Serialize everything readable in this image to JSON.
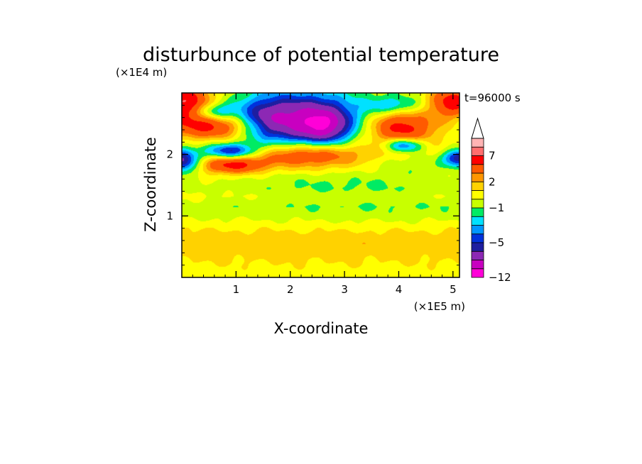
{
  "chart_data": {
    "type": "heatmap",
    "title": "disturbunce of potential temperature",
    "time_label": "t=96000 s",
    "xlabel": "X-coordinate",
    "ylabel": "Z-coordinate",
    "x_unit": "(×1E5 m)",
    "y_unit": "(×1E4 m)",
    "xlim": [
      0,
      5.12
    ],
    "ylim": [
      0,
      3.0
    ],
    "x_ticks": [
      "1",
      "2",
      "3",
      "4",
      "5"
    ],
    "x_tick_values": [
      1,
      2,
      3,
      4,
      5
    ],
    "y_ticks": [
      "1",
      "2"
    ],
    "y_tick_values": [
      1,
      2
    ],
    "colorbar": {
      "labels": [
        "7",
        "2",
        "−1",
        "−5",
        "−12"
      ],
      "label_levels": [
        7,
        2,
        -1,
        -5,
        -12
      ],
      "levels": [
        -12,
        -10,
        -8,
        -6,
        -5,
        -4,
        -3,
        -2,
        -1,
        0,
        1,
        2,
        3,
        5,
        7,
        9,
        11
      ],
      "colors": [
        "#ff00d8",
        "#c800c0",
        "#8c28b4",
        "#1e1ea0",
        "#0032dc",
        "#0096ff",
        "#00e1ff",
        "#00eb64",
        "#c8ff00",
        "#ffff00",
        "#ffd200",
        "#ff9600",
        "#ff5a00",
        "#ff0000",
        "#ff6e6e",
        "#ffb4b4"
      ]
    },
    "features": [
      {
        "x": 0.0,
        "z": 2.85,
        "sx": 0.38,
        "sz": 0.22,
        "v": 7.5
      },
      {
        "x": 0.55,
        "z": 2.45,
        "sx": 0.55,
        "sz": 0.14,
        "v": 5.5
      },
      {
        "x": 0.95,
        "z": 1.83,
        "sx": 0.4,
        "sz": 0.1,
        "v": 5.0
      },
      {
        "x": 0.0,
        "z": 1.9,
        "sx": 0.22,
        "sz": 0.14,
        "v": -7.0
      },
      {
        "x": 0.9,
        "z": 2.05,
        "sx": 0.35,
        "sz": 0.09,
        "v": -6.0
      },
      {
        "x": 0.6,
        "z": 2.7,
        "sx": 0.25,
        "sz": 0.09,
        "v": -3.5
      },
      {
        "x": 2.2,
        "z": 2.55,
        "sx": 0.7,
        "sz": 0.32,
        "v": -8.0
      },
      {
        "x": 2.65,
        "z": 2.45,
        "sx": 0.3,
        "sz": 0.2,
        "v": -4.0
      },
      {
        "x": 1.5,
        "z": 2.6,
        "sx": 0.3,
        "sz": 0.25,
        "v": -2.0
      },
      {
        "x": 2.3,
        "z": 2.0,
        "sx": 0.7,
        "sz": 0.15,
        "v": 5.0
      },
      {
        "x": 4.05,
        "z": 2.45,
        "sx": 0.45,
        "sz": 0.2,
        "v": 6.0
      },
      {
        "x": 5.0,
        "z": 2.85,
        "sx": 0.3,
        "sz": 0.18,
        "v": 6.5
      },
      {
        "x": 4.1,
        "z": 2.15,
        "sx": 0.25,
        "sz": 0.08,
        "v": -5.5
      },
      {
        "x": 5.1,
        "z": 1.95,
        "sx": 0.18,
        "sz": 0.1,
        "v": -6.0
      },
      {
        "x": 3.9,
        "z": 2.8,
        "sx": 0.35,
        "sz": 0.1,
        "v": -3.0
      },
      {
        "x": 3.0,
        "z": 1.55,
        "sx": 1.9,
        "sz": 0.18,
        "v": -1.4
      },
      {
        "x": 4.4,
        "z": 1.85,
        "sx": 0.6,
        "sz": 0.12,
        "v": -1.5
      },
      {
        "x": 3.5,
        "z": 1.12,
        "sx": 2.6,
        "sz": 0.22,
        "v": -0.6
      }
    ],
    "background_profile": [
      {
        "z": 0.0,
        "v": 0.5
      },
      {
        "z": 0.1,
        "v": 0.6
      },
      {
        "z": 0.35,
        "v": 1.3
      },
      {
        "z": 0.55,
        "v": 1.7
      },
      {
        "z": 0.7,
        "v": 1.4
      },
      {
        "z": 0.85,
        "v": 0.7
      },
      {
        "z": 1.0,
        "v": 0.0
      },
      {
        "z": 1.15,
        "v": -0.3
      },
      {
        "z": 1.32,
        "v": 0.6
      },
      {
        "z": 1.45,
        "v": 0.3
      },
      {
        "z": 1.75,
        "v": 0.9
      },
      {
        "z": 2.0,
        "v": 0.8
      },
      {
        "z": 2.3,
        "v": 0.1
      },
      {
        "z": 2.6,
        "v": -0.6
      },
      {
        "z": 3.0,
        "v": -0.3
      }
    ]
  }
}
